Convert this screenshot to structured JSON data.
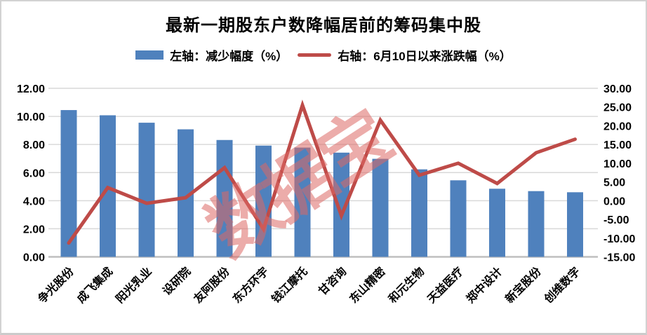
{
  "watermark": {
    "text": "数据宝"
  },
  "chart_data": {
    "type": "combo",
    "title": "最新一期股东户数降幅居前的筹码集中股",
    "categories": [
      "争光股份",
      "成飞集成",
      "阳光乳业",
      "设研院",
      "友阿股份",
      "东方环宇",
      "钱江摩托",
      "甘咨询",
      "东山精密",
      "和元生物",
      "天益医疗",
      "郑中设计",
      "新宝股份",
      "创维数字"
    ],
    "series": [
      {
        "name": "左轴：减少幅度（%）",
        "type": "bar",
        "axis": "left",
        "color": "#4F81BD",
        "values": [
          10.45,
          10.08,
          9.55,
          9.08,
          8.32,
          7.92,
          7.78,
          7.42,
          6.98,
          6.23,
          5.45,
          4.85,
          4.68,
          4.6
        ]
      },
      {
        "name": "右轴：6月10日以来涨跌幅（%）",
        "type": "line",
        "axis": "right",
        "color": "#BE4B48",
        "values": [
          -11.3,
          3.5,
          -0.7,
          0.8,
          8.8,
          -7.6,
          25.5,
          -4.0,
          21.5,
          6.8,
          10.0,
          4.6,
          12.8,
          16.4
        ]
      }
    ],
    "left_axis": {
      "min": 0,
      "max": 12,
      "step": 2,
      "tick_format": "0.00"
    },
    "right_axis": {
      "min": -15,
      "max": 30,
      "step": 5,
      "tick_format": "0.00"
    },
    "grid": true,
    "legend_position": "top",
    "gridline_color": "#D9D9D9",
    "axisline_color": "#BFBFBF",
    "watermark_color": "#DD6864"
  }
}
